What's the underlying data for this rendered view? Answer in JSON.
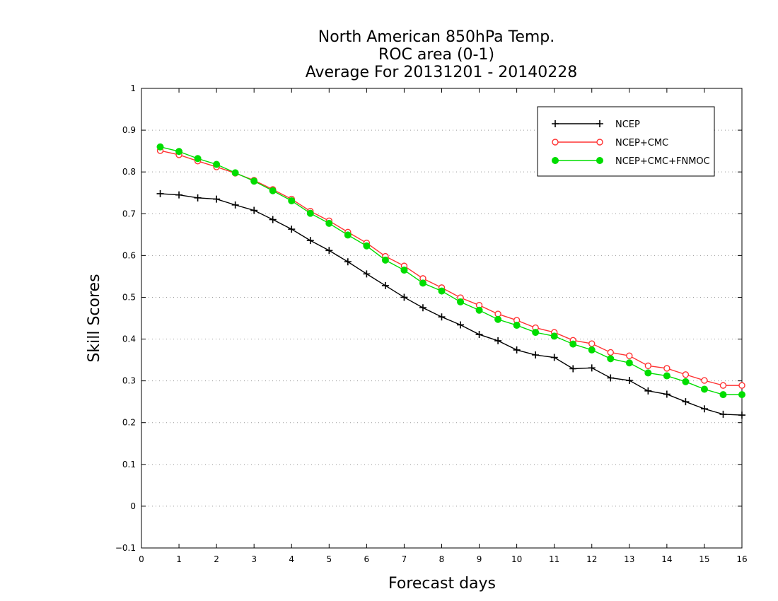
{
  "chart_data": {
    "type": "line",
    "title": [
      "North American 850hPa Temp.",
      "ROC area (0-1)",
      "Average For 20131201 - 20140228"
    ],
    "xlabel": "Forecast days",
    "ylabel": "Skill Scores",
    "xlim": [
      0,
      16
    ],
    "ylim": [
      -0.1,
      1
    ],
    "xticks": [
      0,
      1,
      2,
      3,
      4,
      5,
      6,
      7,
      8,
      9,
      10,
      11,
      12,
      13,
      14,
      15,
      16
    ],
    "xtick_labels": [
      "0",
      "1",
      "2",
      "3",
      "4",
      "5",
      "6",
      "7",
      "8",
      "9",
      "10",
      "11",
      "12",
      "13",
      "14",
      "15",
      "16"
    ],
    "yticks": [
      -0.1,
      0,
      0.1,
      0.2,
      0.3,
      0.4,
      0.5,
      0.6,
      0.7,
      0.8,
      0.9,
      1
    ],
    "ytick_labels": [
      "−0.1",
      "0",
      "0.1",
      "0.2",
      "0.3",
      "0.4",
      "0.5",
      "0.6",
      "0.7",
      "0.8",
      "0.9",
      "1"
    ],
    "grid": "horizontal dotted",
    "legend_position": "top-right",
    "x": [
      0.5,
      1,
      1.5,
      2,
      2.5,
      3,
      3.5,
      4,
      4.5,
      5,
      5.5,
      6,
      6.5,
      7,
      7.5,
      8,
      8.5,
      9,
      9.5,
      10,
      10.5,
      11,
      11.5,
      12,
      12.5,
      13,
      13.5,
      14,
      14.5,
      15,
      15.5,
      16
    ],
    "series": [
      {
        "name": "NCEP",
        "color": "#000000",
        "marker": "plus",
        "values": [
          0.748,
          0.745,
          0.738,
          0.735,
          0.721,
          0.708,
          0.686,
          0.663,
          0.636,
          0.612,
          0.585,
          0.556,
          0.528,
          0.5,
          0.475,
          0.453,
          0.434,
          0.411,
          0.396,
          0.374,
          0.362,
          0.356,
          0.329,
          0.331,
          0.307,
          0.301,
          0.276,
          0.268,
          0.25,
          0.233,
          0.22,
          0.218
        ]
      },
      {
        "name": "NCEP+CMC",
        "color": "#ff3333",
        "marker": "open-circle",
        "values": [
          0.851,
          0.841,
          0.826,
          0.812,
          0.797,
          0.78,
          0.758,
          0.735,
          0.706,
          0.683,
          0.656,
          0.63,
          0.598,
          0.575,
          0.545,
          0.523,
          0.499,
          0.481,
          0.46,
          0.445,
          0.427,
          0.416,
          0.397,
          0.389,
          0.368,
          0.36,
          0.336,
          0.33,
          0.315,
          0.301,
          0.289,
          0.289
        ]
      },
      {
        "name": "NCEP+CMC+FNMOC",
        "color": "#00dd00",
        "marker": "filled-circle",
        "values": [
          0.86,
          0.849,
          0.832,
          0.818,
          0.798,
          0.778,
          0.755,
          0.731,
          0.701,
          0.677,
          0.649,
          0.623,
          0.589,
          0.565,
          0.534,
          0.515,
          0.489,
          0.469,
          0.447,
          0.433,
          0.416,
          0.407,
          0.388,
          0.374,
          0.353,
          0.343,
          0.319,
          0.312,
          0.298,
          0.28,
          0.267,
          0.267
        ]
      }
    ]
  }
}
